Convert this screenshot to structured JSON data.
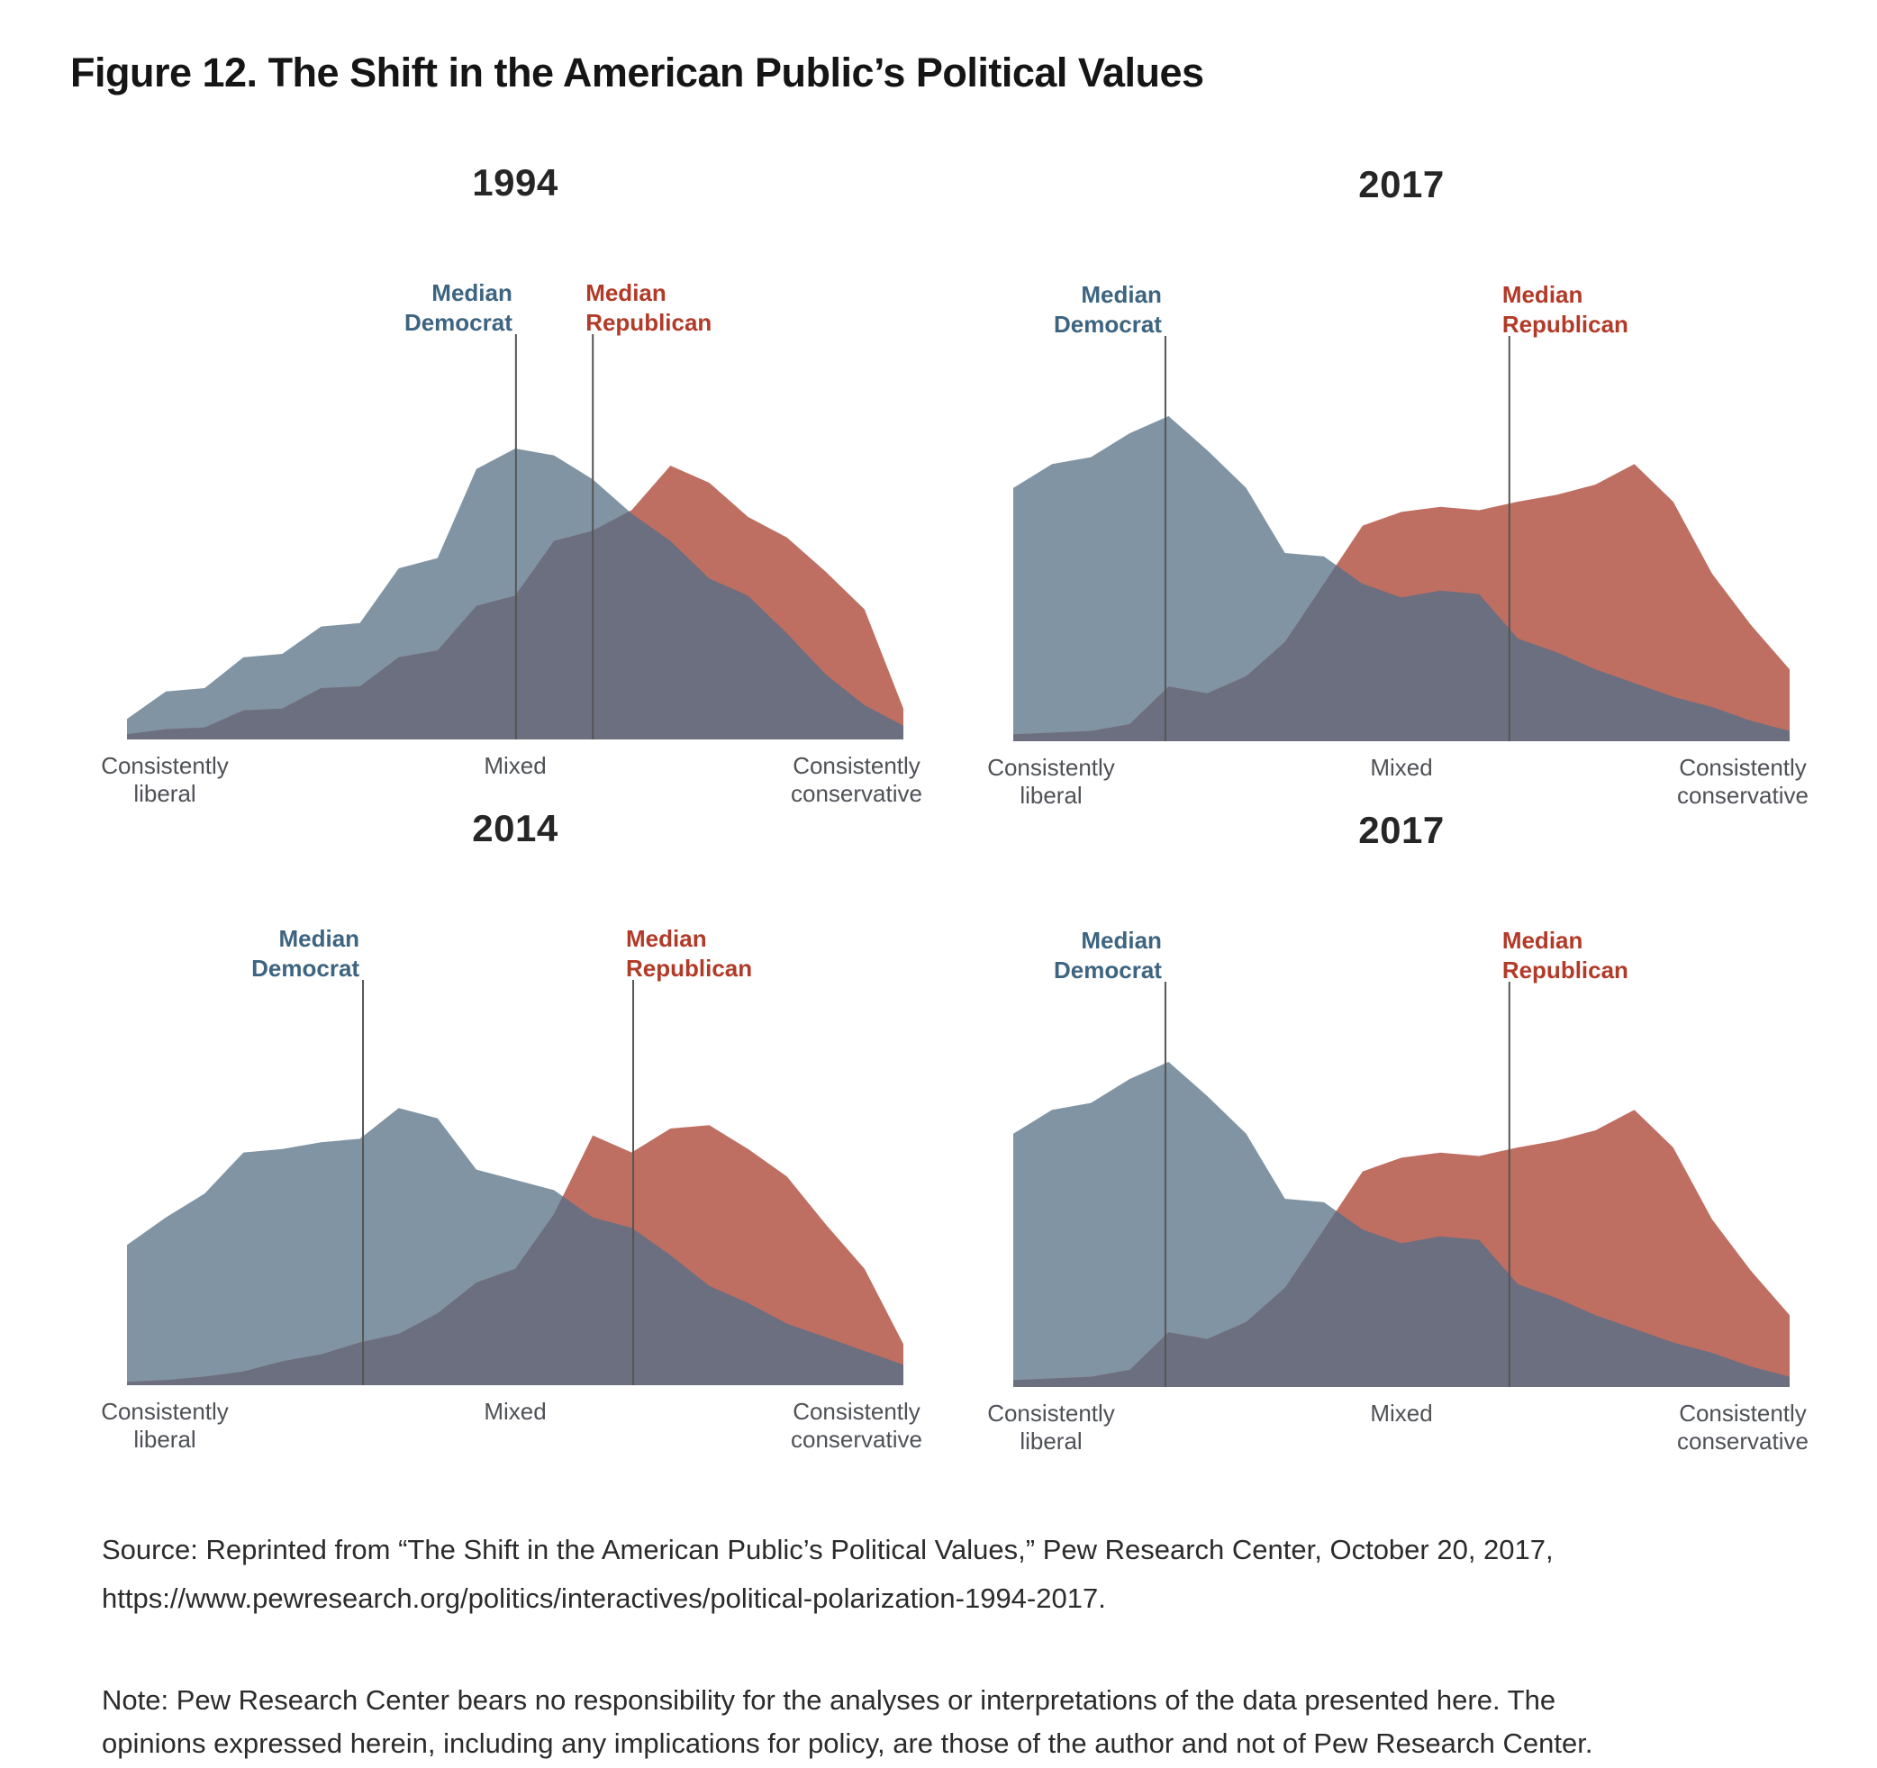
{
  "title": "Figure 12. The Shift in the American Public’s Political Values",
  "labels": {
    "median": "Median",
    "democrat": "Democrat",
    "republican": "Republican",
    "axis_left_line1": "Consistently",
    "axis_left_line2": "liberal",
    "axis_mid": "Mixed",
    "axis_right_line1": "Consistently",
    "axis_right_line2": "conservative"
  },
  "colors": {
    "democrat_area": "#8094A4",
    "republican_area": "#BF6E62",
    "overlap_area": "#6B6F80",
    "democrat_label_text": "#3D6480",
    "republican_label_text": "#B23A28",
    "median_line": "#555555",
    "axis_label_text": "#4E5156",
    "title_text": "#151515"
  },
  "chart_data": [
    {
      "type": "area",
      "title": "1994",
      "x_axis": {
        "left": "Consistently liberal",
        "center": "Mixed",
        "right": "Consistently conservative",
        "n_points": 21
      },
      "y_unit": "share of party members (%)",
      "ylim": [
        0,
        10
      ],
      "series": [
        {
          "name": "Democrat",
          "values": [
            0.6,
            1.4,
            1.5,
            2.4,
            2.5,
            3.3,
            3.4,
            5.0,
            5.3,
            7.9,
            8.5,
            8.3,
            7.6,
            6.6,
            5.8,
            4.7,
            4.2,
            3.1,
            1.9,
            1.0,
            0.4
          ]
        },
        {
          "name": "Republican",
          "values": [
            0.15,
            0.3,
            0.35,
            0.85,
            0.9,
            1.5,
            1.55,
            2.4,
            2.6,
            3.9,
            4.2,
            5.8,
            6.1,
            6.7,
            8.0,
            7.5,
            6.5,
            5.9,
            4.9,
            3.8,
            0.9
          ]
        }
      ],
      "median_democrat_x_frac": 0.501,
      "median_republican_x_frac": 0.6
    },
    {
      "type": "area",
      "title": "2017",
      "x_axis": {
        "left": "Consistently liberal",
        "center": "Mixed",
        "right": "Consistently conservative",
        "n_points": 21
      },
      "y_unit": "share of party members (%)",
      "ylim": [
        0,
        10
      ],
      "series": [
        {
          "name": "Democrat",
          "values": [
            7.4,
            8.1,
            8.3,
            9.0,
            9.5,
            8.5,
            7.4,
            5.5,
            5.4,
            4.6,
            4.2,
            4.4,
            4.3,
            3.0,
            2.6,
            2.1,
            1.7,
            1.3,
            1.0,
            0.6,
            0.3
          ]
        },
        {
          "name": "Republican",
          "values": [
            0.2,
            0.25,
            0.3,
            0.5,
            1.6,
            1.4,
            1.9,
            2.9,
            4.6,
            6.3,
            6.7,
            6.85,
            6.75,
            7.0,
            7.2,
            7.5,
            8.1,
            7.0,
            4.9,
            3.4,
            2.1
          ]
        }
      ],
      "median_democrat_x_frac": 0.196,
      "median_republican_x_frac": 0.639
    },
    {
      "type": "area",
      "title": "2014",
      "x_axis": {
        "left": "Consistently liberal",
        "center": "Mixed",
        "right": "Consistently conservative",
        "n_points": 21
      },
      "y_unit": "share of party members (%)",
      "ylim": [
        0,
        10
      ],
      "series": [
        {
          "name": "Democrat",
          "values": [
            4.1,
            4.9,
            5.6,
            6.8,
            6.9,
            7.1,
            7.2,
            8.1,
            7.8,
            6.3,
            6.0,
            5.7,
            4.9,
            4.6,
            3.8,
            2.9,
            2.4,
            1.8,
            1.4,
            1.0,
            0.6
          ]
        },
        {
          "name": "Republican",
          "values": [
            0.1,
            0.15,
            0.25,
            0.4,
            0.7,
            0.9,
            1.25,
            1.5,
            2.1,
            3.0,
            3.4,
            5.0,
            7.3,
            6.8,
            7.5,
            7.6,
            6.9,
            6.1,
            4.7,
            3.4,
            1.2
          ]
        }
      ],
      "median_democrat_x_frac": 0.304,
      "median_republican_x_frac": 0.652
    },
    {
      "type": "area",
      "title": "2017",
      "x_axis": {
        "left": "Consistently liberal",
        "center": "Mixed",
        "right": "Consistently conservative",
        "n_points": 21
      },
      "y_unit": "share of party members (%)",
      "ylim": [
        0,
        10
      ],
      "series": [
        {
          "name": "Democrat",
          "values": [
            7.4,
            8.1,
            8.3,
            9.0,
            9.5,
            8.5,
            7.4,
            5.5,
            5.4,
            4.6,
            4.2,
            4.4,
            4.3,
            3.0,
            2.6,
            2.1,
            1.7,
            1.3,
            1.0,
            0.6,
            0.3
          ]
        },
        {
          "name": "Republican",
          "values": [
            0.2,
            0.25,
            0.3,
            0.5,
            1.6,
            1.4,
            1.9,
            2.9,
            4.6,
            6.3,
            6.7,
            6.85,
            6.75,
            7.0,
            7.2,
            7.5,
            8.1,
            7.0,
            4.9,
            3.4,
            2.1
          ]
        }
      ],
      "median_democrat_x_frac": 0.196,
      "median_republican_x_frac": 0.639
    }
  ],
  "source": {
    "lines": [
      "Source: Reprinted from “The Shift in the American Public’s Political Values,” Pew Research Center, October 20, 2017,",
      "https://www.pewresearch.org/politics/interactives/political-polarization-1994-2017."
    ]
  },
  "note": {
    "lines": [
      "Note: Pew Research Center bears no responsibility for the analyses or interpretations of the data presented here. The",
      "opinions expressed herein, including any implications for policy, are those of the author and not of Pew Research Center."
    ]
  }
}
